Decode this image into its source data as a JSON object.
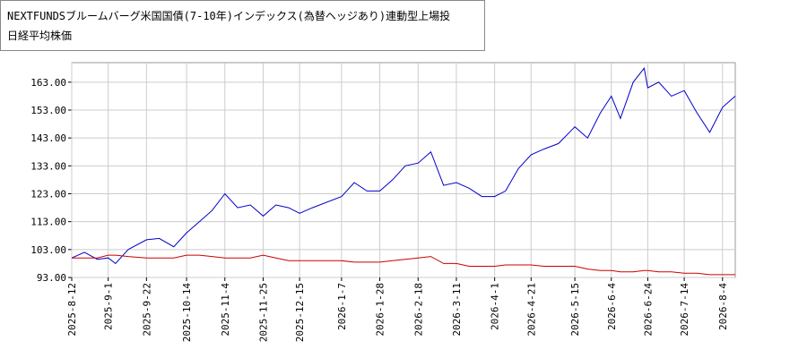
{
  "chart_data": {
    "type": "line",
    "x": [
      "2025-08-12",
      "2025-08-19",
      "2025-08-26",
      "2025-09-01",
      "2025-09-05",
      "2025-09-12",
      "2025-09-22",
      "2025-09-29",
      "2025-10-07",
      "2025-10-14",
      "2025-10-21",
      "2025-10-28",
      "2025-11-04",
      "2025-11-11",
      "2025-11-18",
      "2025-11-25",
      "2025-12-02",
      "2025-12-09",
      "2025-12-15",
      "2025-12-22",
      "2026-01-07",
      "2026-01-14",
      "2026-01-21",
      "2026-01-28",
      "2026-02-04",
      "2026-02-11",
      "2026-02-18",
      "2026-02-25",
      "2026-03-04",
      "2026-03-11",
      "2026-03-18",
      "2026-03-25",
      "2026-04-01",
      "2026-04-07",
      "2026-04-14",
      "2026-04-21",
      "2026-04-28",
      "2026-05-06",
      "2026-05-15",
      "2026-05-22",
      "2026-05-29",
      "2026-06-04",
      "2026-06-09",
      "2026-06-16",
      "2026-06-22",
      "2026-06-24",
      "2026-06-30",
      "2026-07-07",
      "2026-07-14",
      "2026-07-21",
      "2026-07-28",
      "2026-08-04",
      "2026-08-11"
    ],
    "series": [
      {
        "name": "NEXTFUNDSブルームバーグ米国国債(7-10年)インデックス(為替ヘッジあり)連動型上場投",
        "color": "#0000cc",
        "values": [
          100,
          102,
          99.5,
          100,
          98,
          103,
          106.5,
          107,
          104,
          109,
          113,
          117,
          123,
          118,
          119,
          115,
          119,
          118,
          116,
          118,
          122,
          127,
          124,
          124,
          128,
          133,
          134,
          138,
          126,
          127,
          125,
          122,
          122,
          124,
          132,
          137,
          139,
          141,
          147,
          143,
          152,
          158,
          150,
          163,
          168,
          161,
          163,
          158,
          160,
          152,
          145,
          154,
          158
        ]
      },
      {
        "name": "日経平均株価",
        "color": "#cc0000",
        "values": [
          100,
          100,
          100,
          101,
          101,
          100.5,
          100,
          100,
          100,
          101,
          101,
          100.5,
          100,
          100,
          100,
          101,
          100,
          99,
          99,
          99,
          99,
          98.5,
          98.5,
          98.5,
          99,
          99.5,
          100,
          100.5,
          98,
          98,
          97,
          97,
          97,
          97.5,
          97.5,
          97.5,
          97,
          97,
          97,
          96,
          95.5,
          95.5,
          95,
          95,
          95.5,
          95.5,
          95,
          95,
          94.5,
          94.5,
          94,
          94,
          94
        ]
      }
    ],
    "xlim": [
      "2025-08-12",
      "2026-08-11"
    ],
    "xticks": [
      {
        "value": "2025-08-12",
        "label": "2025-8-12"
      },
      {
        "value": "2025-09-01",
        "label": "2025-9-1"
      },
      {
        "value": "2025-09-22",
        "label": "2025-9-22"
      },
      {
        "value": "2025-10-14",
        "label": "2025-10-14"
      },
      {
        "value": "2025-11-04",
        "label": "2025-11-4"
      },
      {
        "value": "2025-11-25",
        "label": "2025-11-25"
      },
      {
        "value": "2025-12-15",
        "label": "2025-12-15"
      },
      {
        "value": "2026-01-07",
        "label": "2026-1-7"
      },
      {
        "value": "2026-01-28",
        "label": "2026-1-28"
      },
      {
        "value": "2026-02-18",
        "label": "2026-2-18"
      },
      {
        "value": "2026-03-11",
        "label": "2026-3-11"
      },
      {
        "value": "2026-04-01",
        "label": "2026-4-1"
      },
      {
        "value": "2026-04-21",
        "label": "2026-4-21"
      },
      {
        "value": "2026-05-15",
        "label": "2026-5-15"
      },
      {
        "value": "2026-06-04",
        "label": "2026-6-4"
      },
      {
        "value": "2026-06-24",
        "label": "2026-6-24"
      },
      {
        "value": "2026-07-14",
        "label": "2026-7-14"
      },
      {
        "value": "2026-08-04",
        "label": "2026-8-4"
      }
    ],
    "ylim": [
      93,
      170
    ],
    "yticks": [
      {
        "value": 93,
        "label": "93.00"
      },
      {
        "value": 103,
        "label": "103.00"
      },
      {
        "value": 113,
        "label": "113.00"
      },
      {
        "value": 123,
        "label": "123.00"
      },
      {
        "value": 133,
        "label": "133.00"
      },
      {
        "value": 143,
        "label": "143.00"
      },
      {
        "value": 153,
        "label": "153.00"
      },
      {
        "value": 163,
        "label": "163.00"
      }
    ],
    "grid": true
  }
}
